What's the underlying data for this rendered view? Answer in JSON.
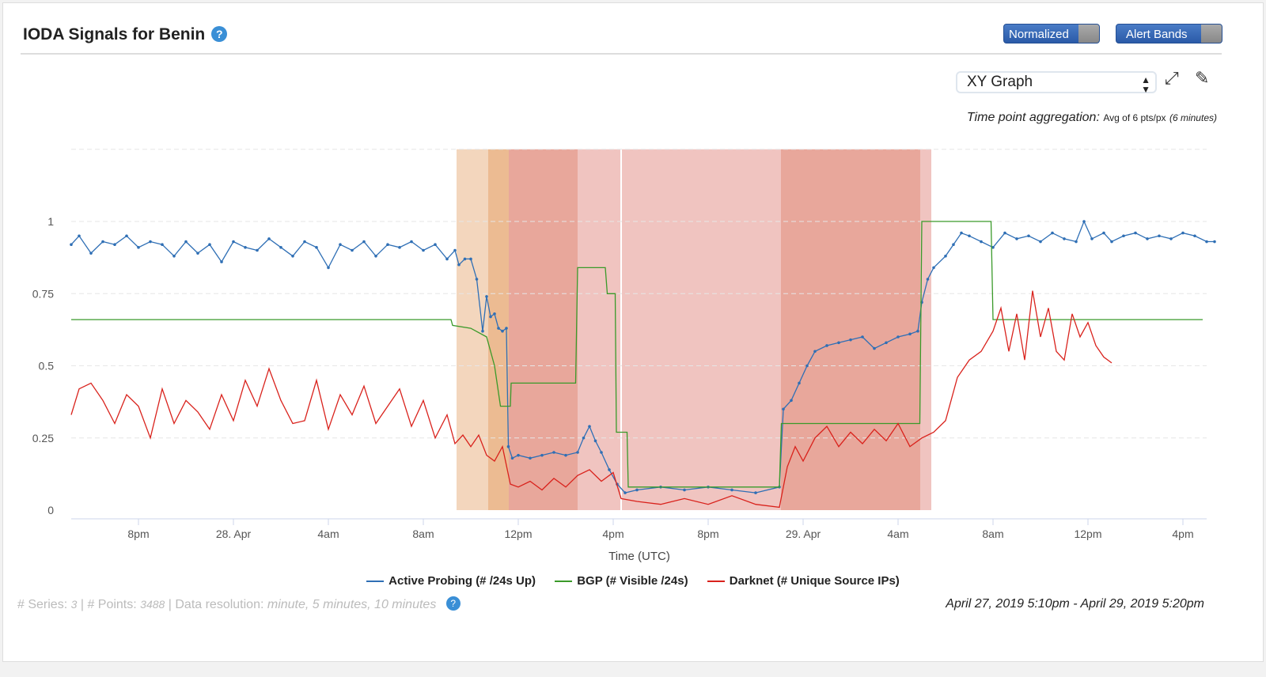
{
  "header": {
    "title": "IODA Signals for Benin",
    "help_icon": "question-circle-icon",
    "toggles": [
      "Normalized",
      "Alert Bands"
    ]
  },
  "controls": {
    "view_select": "XY Graph",
    "aggregation_label": "Time point aggregation:",
    "aggregation_value": "Avg of 6 pts/px",
    "aggregation_detail": "(6 minutes)"
  },
  "footer": {
    "series_label": "# Series:",
    "series_count": "3",
    "points_label": "# Points:",
    "points_count": "3488",
    "resolution_label": "Data resolution:",
    "resolution_value": "minute, 5 minutes, 10 minutes",
    "date_range": "April 27, 2019 5:10pm - April 29, 2019 5:20pm"
  },
  "chart_data": {
    "type": "line",
    "xlabel": "Time (UTC)",
    "xlim": [
      "04-27 17:10",
      "04-29 17:20"
    ],
    "ylim": [
      0,
      1.25
    ],
    "yticks": [
      {
        "v": 0,
        "label": "0"
      },
      {
        "v": 0.25,
        "label": "0.25"
      },
      {
        "v": 0.5,
        "label": "0.5"
      },
      {
        "v": 0.75,
        "label": "0.75"
      },
      {
        "v": 1,
        "label": "1"
      }
    ],
    "xticks": [
      {
        "t": "04-27 20:00",
        "label": "8pm"
      },
      {
        "t": "04-28 00:00",
        "label": "28. Apr"
      },
      {
        "t": "04-28 04:00",
        "label": "4am"
      },
      {
        "t": "04-28 08:00",
        "label": "8am"
      },
      {
        "t": "04-28 12:00",
        "label": "12pm"
      },
      {
        "t": "04-28 16:00",
        "label": "4pm"
      },
      {
        "t": "04-28 20:00",
        "label": "8pm"
      },
      {
        "t": "04-29 00:00",
        "label": "29. Apr"
      },
      {
        "t": "04-29 04:00",
        "label": "4am"
      },
      {
        "t": "04-29 08:00",
        "label": "8am"
      },
      {
        "t": "04-29 12:00",
        "label": "12pm"
      },
      {
        "t": "04-29 16:00",
        "label": "4pm"
      }
    ],
    "grid": true,
    "legend_position": "bottom",
    "alert_bands": [
      {
        "from": "04-28 09:24",
        "to": "04-28 10:44",
        "color": "#f3d6bd"
      },
      {
        "from": "04-28 10:44",
        "to": "04-28 11:36",
        "color": "#ecbb92"
      },
      {
        "from": "04-28 11:36",
        "to": "04-28 14:30",
        "color": "#e8a79b"
      },
      {
        "from": "04-28 14:30",
        "to": "04-28 23:04",
        "color": "#f0c4c0"
      },
      {
        "from": "04-28 23:04",
        "to": "04-29 04:56",
        "color": "#e8a79b"
      },
      {
        "from": "04-29 04:56",
        "to": "04-29 05:24",
        "color": "#f0c4c0"
      }
    ],
    "marker_line": "04-28 16:20",
    "series": [
      {
        "name": "Active Probing (# /24s Up)",
        "color": "#2f6fb5",
        "markers": true,
        "points": [
          [
            "04-27 17:10",
            0.92
          ],
          [
            "04-27 17:30",
            0.95
          ],
          [
            "04-27 18:00",
            0.89
          ],
          [
            "04-27 18:30",
            0.93
          ],
          [
            "04-27 19:00",
            0.92
          ],
          [
            "04-27 19:30",
            0.95
          ],
          [
            "04-27 20:00",
            0.91
          ],
          [
            "04-27 20:30",
            0.93
          ],
          [
            "04-27 21:00",
            0.92
          ],
          [
            "04-27 21:30",
            0.88
          ],
          [
            "04-27 22:00",
            0.93
          ],
          [
            "04-27 22:30",
            0.89
          ],
          [
            "04-27 23:00",
            0.92
          ],
          [
            "04-27 23:30",
            0.86
          ],
          [
            "04-28 00:00",
            0.93
          ],
          [
            "04-28 00:30",
            0.91
          ],
          [
            "04-28 01:00",
            0.9
          ],
          [
            "04-28 01:30",
            0.94
          ],
          [
            "04-28 02:00",
            0.91
          ],
          [
            "04-28 02:30",
            0.88
          ],
          [
            "04-28 03:00",
            0.93
          ],
          [
            "04-28 03:30",
            0.91
          ],
          [
            "04-28 04:00",
            0.84
          ],
          [
            "04-28 04:30",
            0.92
          ],
          [
            "04-28 05:00",
            0.9
          ],
          [
            "04-28 05:30",
            0.93
          ],
          [
            "04-28 06:00",
            0.88
          ],
          [
            "04-28 06:30",
            0.92
          ],
          [
            "04-28 07:00",
            0.91
          ],
          [
            "04-28 07:30",
            0.93
          ],
          [
            "04-28 08:00",
            0.9
          ],
          [
            "04-28 08:30",
            0.92
          ],
          [
            "04-28 09:00",
            0.87
          ],
          [
            "04-28 09:20",
            0.9
          ],
          [
            "04-28 09:30",
            0.85
          ],
          [
            "04-28 09:45",
            0.87
          ],
          [
            "04-28 10:00",
            0.87
          ],
          [
            "04-28 10:15",
            0.8
          ],
          [
            "04-28 10:30",
            0.62
          ],
          [
            "04-28 10:40",
            0.74
          ],
          [
            "04-28 10:50",
            0.67
          ],
          [
            "04-28 11:00",
            0.68
          ],
          [
            "04-28 11:10",
            0.63
          ],
          [
            "04-28 11:20",
            0.62
          ],
          [
            "04-28 11:30",
            0.63
          ],
          [
            "04-28 11:35",
            0.22
          ],
          [
            "04-28 11:45",
            0.18
          ],
          [
            "04-28 12:00",
            0.19
          ],
          [
            "04-28 12:30",
            0.18
          ],
          [
            "04-28 13:00",
            0.19
          ],
          [
            "04-28 13:30",
            0.2
          ],
          [
            "04-28 14:00",
            0.19
          ],
          [
            "04-28 14:30",
            0.2
          ],
          [
            "04-28 14:45",
            0.25
          ],
          [
            "04-28 15:00",
            0.29
          ],
          [
            "04-28 15:15",
            0.24
          ],
          [
            "04-28 15:30",
            0.2
          ],
          [
            "04-28 15:50",
            0.14
          ],
          [
            "04-28 16:10",
            0.09
          ],
          [
            "04-28 16:30",
            0.06
          ],
          [
            "04-28 17:00",
            0.07
          ],
          [
            "04-28 18:00",
            0.08
          ],
          [
            "04-28 19:00",
            0.07
          ],
          [
            "04-28 20:00",
            0.08
          ],
          [
            "04-28 21:00",
            0.07
          ],
          [
            "04-28 22:00",
            0.06
          ],
          [
            "04-28 23:00",
            0.08
          ],
          [
            "04-28 23:10",
            0.35
          ],
          [
            "04-28 23:30",
            0.38
          ],
          [
            "04-28 23:50",
            0.44
          ],
          [
            "04-29 00:10",
            0.5
          ],
          [
            "04-29 00:30",
            0.55
          ],
          [
            "04-29 01:00",
            0.57
          ],
          [
            "04-29 01:30",
            0.58
          ],
          [
            "04-29 02:00",
            0.59
          ],
          [
            "04-29 02:30",
            0.6
          ],
          [
            "04-29 03:00",
            0.56
          ],
          [
            "04-29 03:30",
            0.58
          ],
          [
            "04-29 04:00",
            0.6
          ],
          [
            "04-29 04:30",
            0.61
          ],
          [
            "04-29 04:50",
            0.62
          ],
          [
            "04-29 05:00",
            0.72
          ],
          [
            "04-29 05:15",
            0.8
          ],
          [
            "04-29 05:30",
            0.84
          ],
          [
            "04-29 06:00",
            0.88
          ],
          [
            "04-29 06:20",
            0.92
          ],
          [
            "04-29 06:40",
            0.96
          ],
          [
            "04-29 07:00",
            0.95
          ],
          [
            "04-29 07:30",
            0.93
          ],
          [
            "04-29 08:00",
            0.91
          ],
          [
            "04-29 08:30",
            0.96
          ],
          [
            "04-29 09:00",
            0.94
          ],
          [
            "04-29 09:30",
            0.95
          ],
          [
            "04-29 10:00",
            0.93
          ],
          [
            "04-29 10:30",
            0.96
          ],
          [
            "04-29 11:00",
            0.94
          ],
          [
            "04-29 11:30",
            0.93
          ],
          [
            "04-29 11:50",
            1.0
          ],
          [
            "04-29 12:10",
            0.94
          ],
          [
            "04-29 12:40",
            0.96
          ],
          [
            "04-29 13:00",
            0.93
          ],
          [
            "04-29 13:30",
            0.95
          ],
          [
            "04-29 14:00",
            0.96
          ],
          [
            "04-29 14:30",
            0.94
          ],
          [
            "04-29 15:00",
            0.95
          ],
          [
            "04-29 15:30",
            0.94
          ],
          [
            "04-29 16:00",
            0.96
          ],
          [
            "04-29 16:30",
            0.95
          ],
          [
            "04-29 17:00",
            0.93
          ],
          [
            "04-29 17:20",
            0.93
          ]
        ]
      },
      {
        "name": "BGP (# Visible /24s)",
        "color": "#3a9a2a",
        "markers": false,
        "points": [
          [
            "04-27 17:10",
            0.66
          ],
          [
            "04-28 09:10",
            0.66
          ],
          [
            "04-28 09:14",
            0.64
          ],
          [
            "04-28 10:00",
            0.63
          ],
          [
            "04-28 10:40",
            0.6
          ],
          [
            "04-28 11:00",
            0.5
          ],
          [
            "04-28 11:15",
            0.36
          ],
          [
            "04-28 11:40",
            0.36
          ],
          [
            "04-28 11:42",
            0.44
          ],
          [
            "04-28 14:25",
            0.44
          ],
          [
            "04-28 14:30",
            0.84
          ],
          [
            "04-28 15:40",
            0.84
          ],
          [
            "04-28 15:45",
            0.75
          ],
          [
            "04-28 16:05",
            0.75
          ],
          [
            "04-28 16:08",
            0.27
          ],
          [
            "04-28 16:35",
            0.27
          ],
          [
            "04-28 16:38",
            0.08
          ],
          [
            "04-28 23:00",
            0.08
          ],
          [
            "04-28 23:05",
            0.3
          ],
          [
            "04-29 04:55",
            0.3
          ],
          [
            "04-29 05:00",
            1.0
          ],
          [
            "04-29 07:55",
            1.0
          ],
          [
            "04-29 08:00",
            0.66
          ],
          [
            "04-29 16:50",
            0.66
          ]
        ]
      },
      {
        "name": "Darknet (# Unique Source IPs)",
        "color": "#d9221c",
        "markers": false,
        "points": [
          [
            "04-27 17:10",
            0.33
          ],
          [
            "04-27 17:30",
            0.42
          ],
          [
            "04-27 18:00",
            0.44
          ],
          [
            "04-27 18:30",
            0.38
          ],
          [
            "04-27 19:00",
            0.3
          ],
          [
            "04-27 19:30",
            0.4
          ],
          [
            "04-27 20:00",
            0.36
          ],
          [
            "04-27 20:30",
            0.25
          ],
          [
            "04-27 21:00",
            0.42
          ],
          [
            "04-27 21:30",
            0.3
          ],
          [
            "04-27 22:00",
            0.38
          ],
          [
            "04-27 22:30",
            0.34
          ],
          [
            "04-27 23:00",
            0.28
          ],
          [
            "04-27 23:30",
            0.4
          ],
          [
            "04-28 00:00",
            0.31
          ],
          [
            "04-28 00:30",
            0.45
          ],
          [
            "04-28 01:00",
            0.36
          ],
          [
            "04-28 01:30",
            0.49
          ],
          [
            "04-28 02:00",
            0.38
          ],
          [
            "04-28 02:30",
            0.3
          ],
          [
            "04-28 03:00",
            0.31
          ],
          [
            "04-28 03:30",
            0.45
          ],
          [
            "04-28 04:00",
            0.28
          ],
          [
            "04-28 04:30",
            0.4
          ],
          [
            "04-28 05:00",
            0.33
          ],
          [
            "04-28 05:30",
            0.43
          ],
          [
            "04-28 06:00",
            0.3
          ],
          [
            "04-28 06:30",
            0.36
          ],
          [
            "04-28 07:00",
            0.42
          ],
          [
            "04-28 07:30",
            0.29
          ],
          [
            "04-28 08:00",
            0.38
          ],
          [
            "04-28 08:30",
            0.25
          ],
          [
            "04-28 09:00",
            0.33
          ],
          [
            "04-28 09:20",
            0.23
          ],
          [
            "04-28 09:40",
            0.26
          ],
          [
            "04-28 10:00",
            0.22
          ],
          [
            "04-28 10:20",
            0.26
          ],
          [
            "04-28 10:40",
            0.19
          ],
          [
            "04-28 11:00",
            0.17
          ],
          [
            "04-28 11:20",
            0.22
          ],
          [
            "04-28 11:40",
            0.09
          ],
          [
            "04-28 12:00",
            0.08
          ],
          [
            "04-28 12:30",
            0.1
          ],
          [
            "04-28 13:00",
            0.07
          ],
          [
            "04-28 13:30",
            0.11
          ],
          [
            "04-28 14:00",
            0.08
          ],
          [
            "04-28 14:30",
            0.12
          ],
          [
            "04-28 15:00",
            0.14
          ],
          [
            "04-28 15:30",
            0.1
          ],
          [
            "04-28 16:00",
            0.13
          ],
          [
            "04-28 16:20",
            0.04
          ],
          [
            "04-28 17:00",
            0.03
          ],
          [
            "04-28 18:00",
            0.02
          ],
          [
            "04-28 19:00",
            0.04
          ],
          [
            "04-28 20:00",
            0.02
          ],
          [
            "04-28 21:00",
            0.05
          ],
          [
            "04-28 22:00",
            0.02
          ],
          [
            "04-28 23:00",
            0.01
          ],
          [
            "04-28 23:20",
            0.15
          ],
          [
            "04-28 23:40",
            0.22
          ],
          [
            "04-29 00:00",
            0.17
          ],
          [
            "04-29 00:30",
            0.25
          ],
          [
            "04-29 01:00",
            0.29
          ],
          [
            "04-29 01:30",
            0.22
          ],
          [
            "04-29 02:00",
            0.27
          ],
          [
            "04-29 02:30",
            0.23
          ],
          [
            "04-29 03:00",
            0.28
          ],
          [
            "04-29 03:30",
            0.24
          ],
          [
            "04-29 04:00",
            0.3
          ],
          [
            "04-29 04:30",
            0.22
          ],
          [
            "04-29 05:00",
            0.25
          ],
          [
            "04-29 05:30",
            0.27
          ],
          [
            "04-29 06:00",
            0.31
          ],
          [
            "04-29 06:30",
            0.46
          ],
          [
            "04-29 07:00",
            0.52
          ],
          [
            "04-29 07:30",
            0.55
          ],
          [
            "04-29 08:00",
            0.62
          ],
          [
            "04-29 08:20",
            0.7
          ],
          [
            "04-29 08:40",
            0.55
          ],
          [
            "04-29 09:00",
            0.68
          ],
          [
            "04-29 09:20",
            0.52
          ],
          [
            "04-29 09:40",
            0.76
          ],
          [
            "04-29 10:00",
            0.6
          ],
          [
            "04-29 10:20",
            0.7
          ],
          [
            "04-29 10:40",
            0.55
          ],
          [
            "04-29 11:00",
            0.52
          ],
          [
            "04-29 11:20",
            0.68
          ],
          [
            "04-29 11:40",
            0.6
          ],
          [
            "04-29 12:00",
            0.65
          ],
          [
            "04-29 12:20",
            0.57
          ],
          [
            "04-29 12:40",
            0.53
          ],
          [
            "04-29 13:00",
            0.51
          ]
        ]
      }
    ]
  }
}
